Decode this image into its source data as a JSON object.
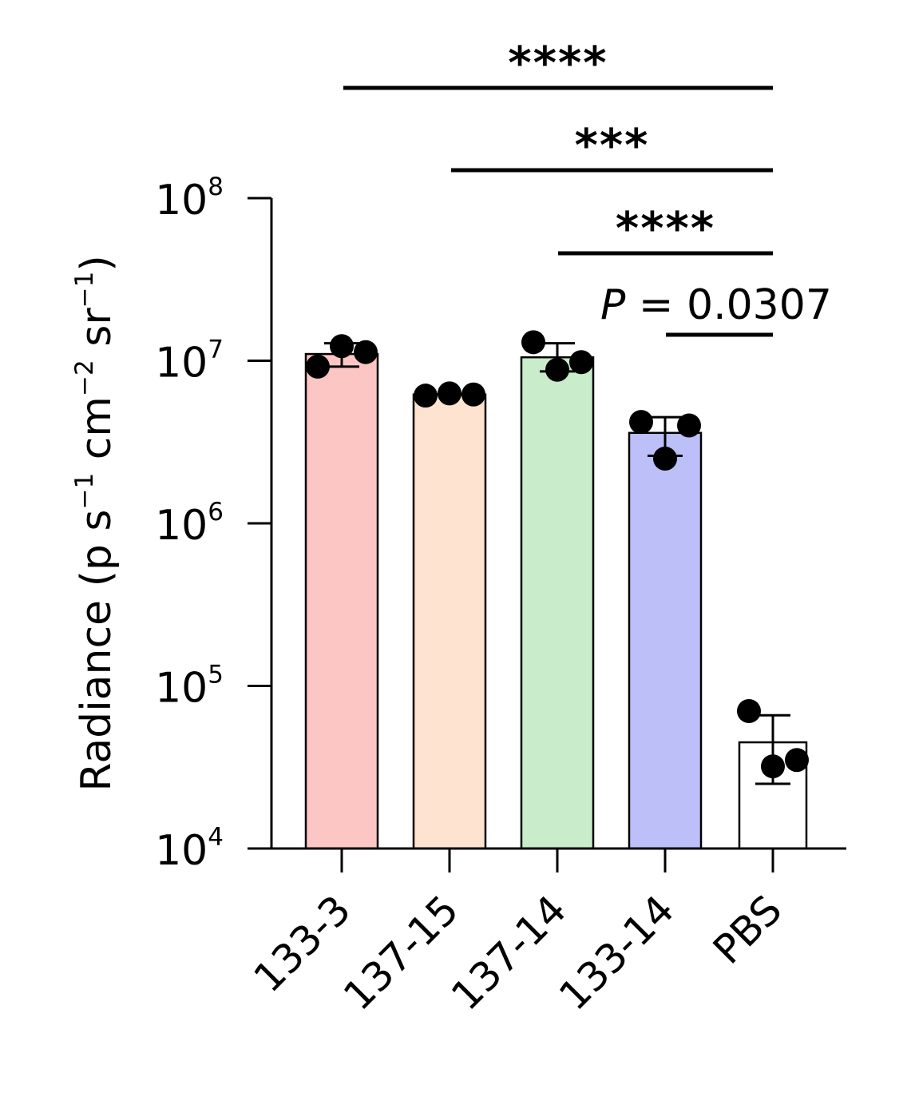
{
  "chart_data": {
    "type": "bar",
    "scale": "log",
    "categories": [
      "133-3",
      "137-15",
      "137-14",
      "133-14",
      "PBS"
    ],
    "values": [
      11000000,
      6200000,
      10500000,
      3600000,
      45000
    ],
    "errors": [
      {
        "low": 9200000,
        "high": 12800000
      },
      {
        "low": 6200000,
        "high": 6200000
      },
      {
        "low": 8600000,
        "high": 12800000
      },
      {
        "low": 2600000,
        "high": 4500000
      },
      {
        "low": 25000,
        "high": 66000
      }
    ],
    "points": [
      [
        9200000,
        12300000,
        11300000
      ],
      [
        6100000,
        6300000,
        6200000
      ],
      [
        13000000,
        8800000,
        9800000
      ],
      [
        4200000,
        2500000,
        4000000
      ],
      [
        70000,
        32000,
        35000
      ]
    ],
    "colors": [
      "#fcc6c5",
      "#fee3d0",
      "#c9ecca",
      "#bdbff8",
      "#ffffff"
    ],
    "ylim": [
      10000,
      100000000
    ],
    "yticks": [
      {
        "base": "10",
        "exp": "4",
        "value": 10000
      },
      {
        "base": "10",
        "exp": "5",
        "value": 100000
      },
      {
        "base": "10",
        "exp": "6",
        "value": 1000000
      },
      {
        "base": "10",
        "exp": "7",
        "value": 10000000
      },
      {
        "base": "10",
        "exp": "8",
        "value": 100000000
      }
    ],
    "ylabel": {
      "main": "Radiance (p s",
      "sup1": "−1",
      "mid1": " cm",
      "sup2": "−2",
      "mid2": " sr",
      "sup3": "−1",
      "close": ")"
    },
    "xlabel": "",
    "title": "",
    "significance": [
      {
        "from": 0,
        "to": 4,
        "label": "****"
      },
      {
        "from": 1,
        "to": 4,
        "label": "***"
      },
      {
        "from": 2,
        "to": 4,
        "label": "****"
      },
      {
        "from": 3,
        "to": 4,
        "label_italic": "P",
        "label": " = 0.0307"
      }
    ]
  }
}
